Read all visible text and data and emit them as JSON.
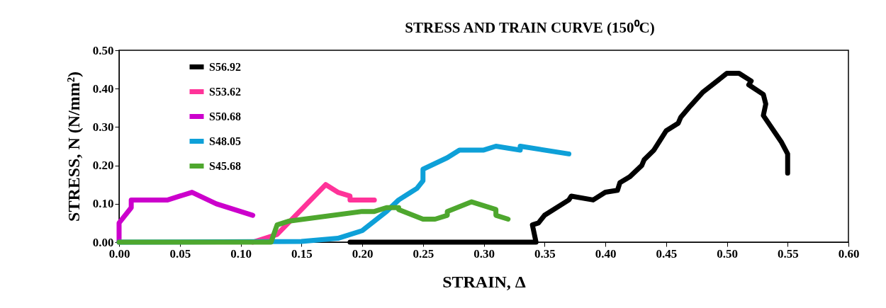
{
  "chart_data": {
    "type": "line",
    "title": "STRESS AND TRAIN CURVE (150⁰C)",
    "xlabel": "STRAIN, Δ",
    "ylabel": "STRESS, N (N/mm²)",
    "xlim": [
      0,
      0.6
    ],
    "xticks": [
      {
        "value": 0,
        "label": "0.00"
      },
      {
        "value": 0.05,
        "label": "0.05"
      },
      {
        "value": 0.1,
        "label": "0.10"
      },
      {
        "value": 0.15,
        "label": "0.15"
      },
      {
        "value": 0.2,
        "label": "0.20"
      },
      {
        "value": 0.25,
        "label": "0.25"
      },
      {
        "value": 0.3,
        "label": "0.30"
      },
      {
        "value": 0.35,
        "label": "0.35"
      },
      {
        "value": 0.4,
        "label": "0.40"
      },
      {
        "value": 0.45,
        "label": "0.45"
      },
      {
        "value": 0.5,
        "label": "0.50"
      },
      {
        "value": 0.55,
        "label": "0.55"
      },
      {
        "value": 0.6,
        "label": "0.60"
      }
    ],
    "ylim": [
      0,
      0.5
    ],
    "yticks": [
      {
        "value": 0,
        "label": "0.00"
      },
      {
        "value": 0.1,
        "label": "0.10"
      },
      {
        "value": 0.2,
        "label": "0.20"
      },
      {
        "value": 0.3,
        "label": "0.30"
      },
      {
        "value": 0.4,
        "label": "0.40"
      },
      {
        "value": 0.5,
        "label": "0.50"
      }
    ],
    "grid": false,
    "legend": "top left",
    "marker": "none",
    "line_style": "solid",
    "series": [
      {
        "name": "S56.92",
        "color": "#000000",
        "x": [
          0.19,
          0.343,
          0.34,
          0.345,
          0.35,
          0.37,
          0.372,
          0.39,
          0.4,
          0.41,
          0.412,
          0.42,
          0.43,
          0.432,
          0.44,
          0.45,
          0.46,
          0.462,
          0.47,
          0.48,
          0.5,
          0.51,
          0.52,
          0.518,
          0.53,
          0.532,
          0.53,
          0.545,
          0.55,
          0.55
        ],
        "values": [
          0,
          0,
          0.045,
          0.05,
          0.07,
          0.11,
          0.12,
          0.11,
          0.13,
          0.135,
          0.155,
          0.17,
          0.2,
          0.215,
          0.24,
          0.29,
          0.31,
          0.325,
          0.355,
          0.39,
          0.44,
          0.44,
          0.42,
          0.41,
          0.385,
          0.36,
          0.33,
          0.26,
          0.23,
          0.18
        ]
      },
      {
        "name": "S53.62",
        "color": "#ff3399",
        "x": [
          0.11,
          0.13,
          0.17,
          0.18,
          0.19,
          0.19,
          0.21
        ],
        "values": [
          0,
          0.02,
          0.15,
          0.13,
          0.12,
          0.11,
          0.11
        ]
      },
      {
        "name": "S50.68",
        "color": "#cc00cc",
        "x": [
          0,
          0,
          0.01,
          0.01,
          0.04,
          0.05,
          0.06,
          0.08,
          0.11
        ],
        "values": [
          0,
          0.05,
          0.09,
          0.11,
          0.11,
          0.12,
          0.13,
          0.1,
          0.07
        ]
      },
      {
        "name": "S48.05",
        "color": "#0ea0d8",
        "x": [
          0,
          0.15,
          0.18,
          0.2,
          0.22,
          0.23,
          0.24,
          0.245,
          0.25,
          0.25,
          0.27,
          0.28,
          0.3,
          0.31,
          0.33,
          0.33,
          0.37
        ],
        "values": [
          0,
          0.002,
          0.01,
          0.03,
          0.08,
          0.11,
          0.13,
          0.14,
          0.16,
          0.19,
          0.22,
          0.24,
          0.24,
          0.25,
          0.24,
          0.25,
          0.23
        ]
      },
      {
        "name": "S45.68",
        "color": "#4ea72e",
        "x": [
          0,
          0.125,
          0.13,
          0.14,
          0.2,
          0.21,
          0.22,
          0.23,
          0.23,
          0.25,
          0.26,
          0.27,
          0.27,
          0.29,
          0.31,
          0.31,
          0.32
        ],
        "values": [
          0,
          0,
          0.045,
          0.055,
          0.08,
          0.08,
          0.09,
          0.09,
          0.085,
          0.06,
          0.06,
          0.07,
          0.08,
          0.105,
          0.085,
          0.07,
          0.06
        ]
      }
    ]
  }
}
